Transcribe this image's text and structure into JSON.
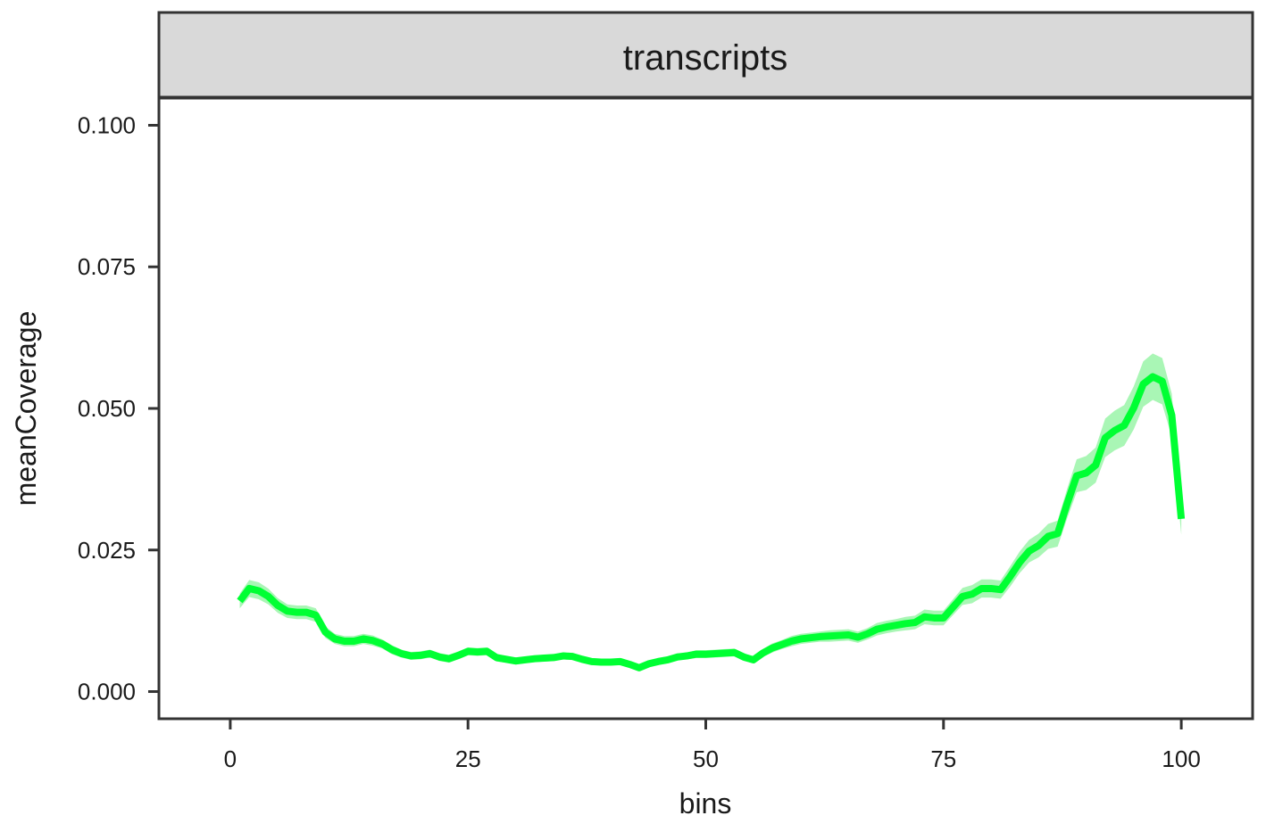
{
  "chart_data": {
    "type": "line",
    "facet_label": "transcripts",
    "xlabel": "bins",
    "ylabel": "meanCoverage",
    "xlim": [
      -7.5,
      107.5
    ],
    "ylim": [
      -0.0048,
      0.1048
    ],
    "x_ticks": [
      0,
      25,
      50,
      75,
      100
    ],
    "x_tick_labels": [
      "0",
      "25",
      "50",
      "75",
      "100"
    ],
    "y_ticks": [
      0,
      0.025,
      0.05,
      0.075,
      0.1
    ],
    "y_tick_labels": [
      "0.000",
      "0.025",
      "0.050",
      "0.075",
      "0.100"
    ],
    "grid": false,
    "line_color": "#00ff33",
    "band_color": "#9af5a8",
    "panel_border_color": "#333333",
    "strip_fill": "#d9d9d9",
    "series": [
      {
        "x": [
          1,
          2,
          3,
          4,
          5,
          6,
          7,
          8,
          9,
          10,
          11,
          12,
          13,
          14,
          15,
          16,
          17,
          18,
          19,
          20,
          21,
          22,
          23,
          24,
          25,
          26,
          27,
          28,
          29,
          30,
          31,
          32,
          33,
          34,
          35,
          36,
          37,
          38,
          39,
          40,
          41,
          42,
          43,
          44,
          45,
          46,
          47,
          48,
          49,
          50,
          51,
          52,
          53,
          54,
          55,
          56,
          57,
          58,
          59,
          60,
          61,
          62,
          63,
          64,
          65,
          66,
          67,
          68,
          69,
          70,
          71,
          72,
          73,
          74,
          75,
          76,
          77,
          78,
          79,
          80,
          81,
          82,
          83,
          84,
          85,
          86,
          87,
          88,
          89,
          90,
          91,
          92,
          93,
          94,
          95,
          96,
          97,
          98,
          99,
          100
        ],
        "y": [
          0.016,
          0.0182,
          0.0178,
          0.0168,
          0.0152,
          0.0142,
          0.014,
          0.014,
          0.0135,
          0.0105,
          0.0093,
          0.0089,
          0.0089,
          0.0093,
          0.009,
          0.0084,
          0.0074,
          0.0067,
          0.0063,
          0.0064,
          0.0067,
          0.0061,
          0.0058,
          0.0064,
          0.0071,
          0.007,
          0.0071,
          0.006,
          0.0057,
          0.0054,
          0.0056,
          0.0058,
          0.0059,
          0.006,
          0.0063,
          0.0062,
          0.0057,
          0.0053,
          0.0052,
          0.0052,
          0.0053,
          0.0048,
          0.0042,
          0.0049,
          0.0053,
          0.0056,
          0.0061,
          0.0063,
          0.0066,
          0.0066,
          0.0067,
          0.0068,
          0.0069,
          0.0061,
          0.0056,
          0.0068,
          0.0077,
          0.0083,
          0.0089,
          0.0093,
          0.0095,
          0.0097,
          0.0098,
          0.0099,
          0.01,
          0.0096,
          0.0102,
          0.011,
          0.0114,
          0.0117,
          0.012,
          0.0122,
          0.0132,
          0.013,
          0.013,
          0.0149,
          0.0168,
          0.0172,
          0.0182,
          0.0182,
          0.018,
          0.0203,
          0.0228,
          0.0248,
          0.0258,
          0.0274,
          0.0279,
          0.0332,
          0.0381,
          0.0386,
          0.04,
          0.0448,
          0.0461,
          0.047,
          0.0501,
          0.0543,
          0.0556,
          0.0548,
          0.0488,
          0.0305
        ],
        "band_halfwidth": [
          0.0013,
          0.0015,
          0.0015,
          0.0014,
          0.0013,
          0.0012,
          0.0012,
          0.0012,
          0.0012,
          0.001,
          0.0009,
          0.0009,
          0.0009,
          0.0009,
          0.0009,
          0.0008,
          0.0008,
          0.0007,
          0.0007,
          0.0007,
          0.0007,
          0.0007,
          0.0007,
          0.0007,
          0.0007,
          0.0007,
          0.0007,
          0.0007,
          0.0006,
          0.0006,
          0.0006,
          0.0006,
          0.0006,
          0.0006,
          0.0006,
          0.0006,
          0.0006,
          0.0006,
          0.0006,
          0.0006,
          0.0006,
          0.0006,
          0.0006,
          0.0006,
          0.0006,
          0.0006,
          0.0006,
          0.0006,
          0.0007,
          0.0007,
          0.0007,
          0.0007,
          0.0007,
          0.0007,
          0.0006,
          0.0007,
          0.0008,
          0.0008,
          0.0009,
          0.0009,
          0.0009,
          0.0009,
          0.001,
          0.001,
          0.001,
          0.001,
          0.001,
          0.0011,
          0.0011,
          0.0011,
          0.0012,
          0.0012,
          0.0013,
          0.0013,
          0.0013,
          0.0014,
          0.0015,
          0.0016,
          0.0016,
          0.0016,
          0.0016,
          0.0018,
          0.0019,
          0.002,
          0.0021,
          0.0022,
          0.0023,
          0.0026,
          0.0029,
          0.003,
          0.0031,
          0.0034,
          0.0035,
          0.0036,
          0.0038,
          0.004,
          0.0041,
          0.0041,
          0.0038,
          0.0028
        ]
      }
    ]
  }
}
